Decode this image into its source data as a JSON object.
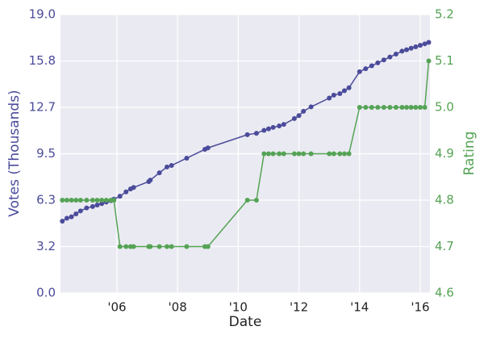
{
  "chart_data": {
    "type": "line",
    "xlabel": "Date",
    "ylabel": "Votes (Thousands)",
    "y2label": "Rating",
    "x": [
      2004.2,
      2004.35,
      2004.5,
      2004.65,
      2004.8,
      2005.0,
      2005.2,
      2005.35,
      2005.5,
      2005.65,
      2005.8,
      2005.9,
      2006.1,
      2006.3,
      2006.45,
      2006.55,
      2007.05,
      2007.1,
      2007.4,
      2007.65,
      2007.8,
      2008.3,
      2008.9,
      2009.0,
      2010.3,
      2010.6,
      2010.85,
      2011.0,
      2011.15,
      2011.35,
      2011.5,
      2011.85,
      2012.0,
      2012.15,
      2012.4,
      2013.0,
      2013.15,
      2013.35,
      2013.5,
      2013.65,
      2014.0,
      2014.2,
      2014.4,
      2014.6,
      2014.8,
      2015.0,
      2015.2,
      2015.4,
      2015.55,
      2015.7,
      2015.85,
      2016.0,
      2016.15,
      2016.28
    ],
    "series": [
      {
        "name": "Votes",
        "color": "#4b4b9b",
        "axis": "y",
        "values": [
          4.9,
          5.1,
          5.2,
          5.4,
          5.6,
          5.8,
          5.9,
          6.0,
          6.1,
          6.2,
          6.3,
          6.4,
          6.6,
          6.9,
          7.1,
          7.2,
          7.6,
          7.7,
          8.2,
          8.6,
          8.7,
          9.2,
          9.8,
          9.9,
          10.8,
          10.9,
          11.1,
          11.2,
          11.3,
          11.4,
          11.5,
          11.9,
          12.1,
          12.4,
          12.7,
          13.3,
          13.5,
          13.6,
          13.8,
          14.0,
          15.1,
          15.3,
          15.5,
          15.7,
          15.9,
          16.1,
          16.3,
          16.5,
          16.6,
          16.7,
          16.8,
          16.9,
          17.0,
          17.1
        ]
      },
      {
        "name": "Rating",
        "color": "#55a355",
        "axis": "y2",
        "values": [
          4.8,
          4.8,
          4.8,
          4.8,
          4.8,
          4.8,
          4.8,
          4.8,
          4.8,
          4.8,
          4.8,
          4.8,
          4.7,
          4.7,
          4.7,
          4.7,
          4.7,
          4.7,
          4.7,
          4.7,
          4.7,
          4.7,
          4.7,
          4.7,
          4.8,
          4.8,
          4.9,
          4.9,
          4.9,
          4.9,
          4.9,
          4.9,
          4.9,
          4.9,
          4.9,
          4.9,
          4.9,
          4.9,
          4.9,
          4.9,
          5.0,
          5.0,
          5.0,
          5.0,
          5.0,
          5.0,
          5.0,
          5.0,
          5.0,
          5.0,
          5.0,
          5.0,
          5.0,
          5.1
        ]
      }
    ],
    "xlim": [
      2004.14,
      2016.32
    ],
    "xticks": [
      {
        "value": 2006,
        "label": "'06"
      },
      {
        "value": 2008,
        "label": "'08"
      },
      {
        "value": 2010,
        "label": "'10"
      },
      {
        "value": 2012,
        "label": "'12"
      },
      {
        "value": 2014,
        "label": "'14"
      },
      {
        "value": 2016,
        "label": "'16"
      }
    ],
    "ylim": [
      0,
      19
    ],
    "yticks": [
      {
        "value": 0,
        "label": "0.0"
      },
      {
        "value": 3.1667,
        "label": "3.2"
      },
      {
        "value": 6.3333,
        "label": "6.3"
      },
      {
        "value": 9.5,
        "label": "9.5"
      },
      {
        "value": 12.6667,
        "label": "12.7"
      },
      {
        "value": 15.8333,
        "label": "15.8"
      },
      {
        "value": 19,
        "label": "19.0"
      }
    ],
    "y2lim": [
      4.6,
      5.2
    ],
    "y2ticks": [
      4.6,
      4.7,
      4.8,
      4.9,
      {
        "value": 5,
        "label": "5.0"
      },
      5.1,
      5.2
    ],
    "grid": true,
    "background": "#eaeaf2"
  }
}
